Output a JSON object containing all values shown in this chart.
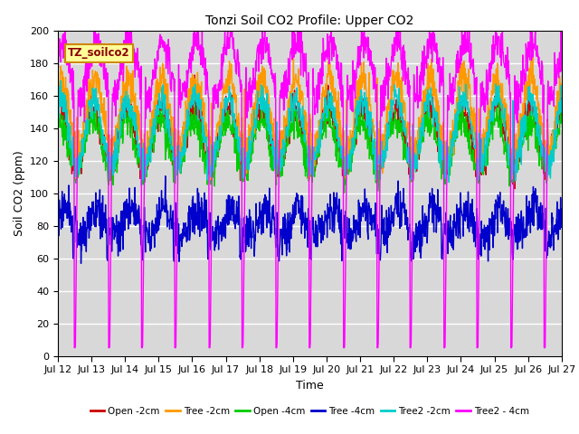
{
  "title": "Tonzi Soil CO2 Profile: Upper CO2",
  "ylabel": "Soil CO2 (ppm)",
  "xlabel": "Time",
  "label_text": "TZ_soilco2",
  "ylim": [
    0,
    200
  ],
  "background_color": "#d8d8d8",
  "series": {
    "Open_2cm": {
      "color": "#cc0000",
      "lw": 1.0
    },
    "Tree_2cm": {
      "color": "#ff9900",
      "lw": 1.0
    },
    "Open_4cm": {
      "color": "#00cc00",
      "lw": 1.0
    },
    "Tree_4cm": {
      "color": "#0000cc",
      "lw": 1.0
    },
    "Tree2_2cm": {
      "color": "#00cccc",
      "lw": 1.0
    },
    "Tree2_4cm": {
      "color": "#ff00ff",
      "lw": 1.0
    }
  },
  "legend_labels": [
    "Open -2cm",
    "Tree -2cm",
    "Open -4cm",
    "Tree -4cm",
    "Tree2 -2cm",
    "Tree2 - 4cm"
  ],
  "legend_colors": [
    "#cc0000",
    "#ff9900",
    "#00cc00",
    "#0000cc",
    "#00cccc",
    "#ff00ff"
  ],
  "xtick_labels": [
    "Jul 12",
    "Jul 13",
    "Jul 14",
    "Jul 15",
    "Jul 16",
    "Jul 17",
    "Jul 18",
    "Jul 19",
    "Jul 20",
    "Jul 21",
    "Jul 22",
    "Jul 23",
    "Jul 24",
    "Jul 25",
    "Jul 26",
    "Jul 27"
  ],
  "n_ticks": 16,
  "total_hours": 360,
  "days": 15
}
